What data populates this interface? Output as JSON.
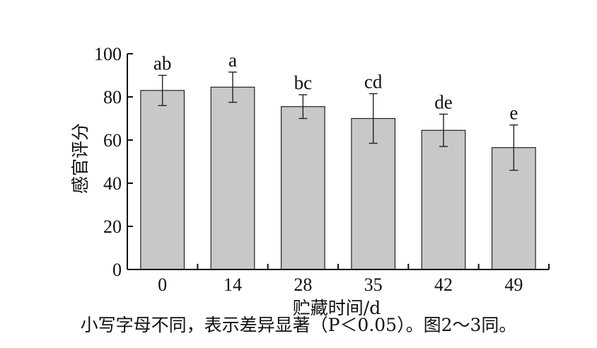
{
  "chart_data": {
    "type": "bar",
    "xlabel": "贮藏时间/d",
    "ylabel": "感官评分",
    "ylim": [
      0,
      100
    ],
    "yticks": [
      0,
      20,
      40,
      60,
      80,
      100
    ],
    "categories": [
      "0",
      "14",
      "28",
      "35",
      "42",
      "49"
    ],
    "values": [
      83,
      84.5,
      75.5,
      70,
      64.5,
      56.5
    ],
    "errors": [
      7,
      7,
      5.5,
      11.5,
      7.5,
      10.5
    ],
    "significance_labels": [
      "ab",
      "a",
      "bc",
      "cd",
      "de",
      "e"
    ],
    "bar_color": "#c8c8c8",
    "grid": false,
    "legend": "none"
  },
  "caption": "小写字母不同，表示差异显著（P＜0.05）。图2～3同。"
}
